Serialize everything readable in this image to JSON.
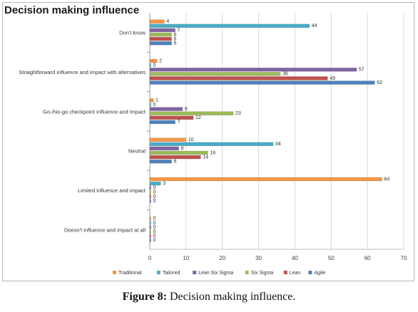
{
  "figure_label": "Figure 8:",
  "figure_caption": "Decision making influence.",
  "chart_data": {
    "type": "bar",
    "orientation": "horizontal",
    "title": "Decision making influence",
    "categories": [
      "Don't know",
      "Straightforward influence and impact with alternatives",
      "Go-/No-go checkpoint influence and impact",
      "Neutral",
      "Limited influence and impact",
      "Doesn't influence and impact at all"
    ],
    "series": [
      {
        "name": "Traditional",
        "color": "#f79646",
        "values": [
          4,
          2,
          1,
          10,
          64,
          0
        ]
      },
      {
        "name": "Tailored",
        "color": "#4bacc6",
        "values": [
          44,
          0,
          0,
          34,
          3,
          0
        ]
      },
      {
        "name": "Lean Six Sigma",
        "color": "#8064a2",
        "values": [
          7,
          57,
          9,
          8,
          0,
          0
        ]
      },
      {
        "name": "Six Sigma",
        "color": "#9bbb59",
        "values": [
          6,
          36,
          23,
          16,
          0,
          0
        ]
      },
      {
        "name": "Lean",
        "color": "#c0504d",
        "values": [
          6,
          49,
          12,
          14,
          0,
          0
        ]
      },
      {
        "name": "Agile",
        "color": "#4f81bd",
        "values": [
          6,
          62,
          7,
          6,
          0,
          0
        ]
      }
    ],
    "xlim": [
      0,
      70
    ],
    "xticks": [
      0,
      10,
      20,
      30,
      40,
      50,
      60,
      70
    ],
    "grid": true,
    "legend": "bottom"
  }
}
